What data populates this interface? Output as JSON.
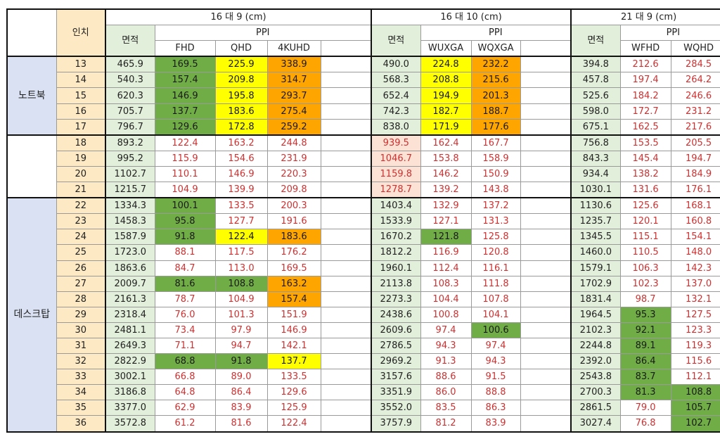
{
  "header": {
    "inch_label": "인치",
    "groups": [
      "16 대 9 (cm)",
      "16 대 10 (cm)",
      "21 대 9 (cm)"
    ],
    "area_label": "면적",
    "ppi_label": "PPI",
    "g1_cols": [
      "FHD",
      "QHD",
      "4KUHD"
    ],
    "g2_cols": [
      "WUXGA",
      "WQXGA"
    ],
    "g3_cols": [
      "WFHD",
      "WQHD"
    ]
  },
  "categories": [
    {
      "label": "노트북",
      "rows": 5
    },
    {
      "label": "",
      "rows": 4
    },
    {
      "label": "데스크탑",
      "rows": 15
    }
  ],
  "colors": {
    "green": "#70ad47",
    "yellow": "#ffff00",
    "orange": "#ffa500",
    "red_text": "#d03030",
    "area_bg": "#e2efda",
    "inch_bg": "#fde9c4",
    "category_bg": "#d9e1f2"
  },
  "rows": [
    {
      "inch": "13",
      "a1": "465.9",
      "fhd": "169.5",
      "qhd": "225.9",
      "uhd": "338.9",
      "a2": "490.0",
      "wuxga": "224.8",
      "wqxga": "232.2",
      "a3": "394.8",
      "wfhd": "212.6",
      "wqhd": "284.5",
      "c": [
        "g",
        "y",
        "o",
        "area",
        "y",
        "o",
        "area",
        "red",
        "red"
      ]
    },
    {
      "inch": "14",
      "a1": "540.3",
      "fhd": "157.4",
      "qhd": "209.8",
      "uhd": "314.7",
      "a2": "568.3",
      "wuxga": "208.8",
      "wqxga": "215.6",
      "a3": "457.8",
      "wfhd": "197.4",
      "wqhd": "264.2",
      "c": [
        "g",
        "y",
        "o",
        "area",
        "y",
        "o",
        "area",
        "red",
        "red"
      ]
    },
    {
      "inch": "15",
      "a1": "620.3",
      "fhd": "146.9",
      "qhd": "195.8",
      "uhd": "293.7",
      "a2": "652.4",
      "wuxga": "194.9",
      "wqxga": "201.3",
      "a3": "525.6",
      "wfhd": "184.2",
      "wqhd": "246.6",
      "c": [
        "g",
        "y",
        "o",
        "area",
        "y",
        "o",
        "area",
        "red",
        "red"
      ]
    },
    {
      "inch": "16",
      "a1": "705.7",
      "fhd": "137.7",
      "qhd": "183.6",
      "uhd": "275.4",
      "a2": "742.3",
      "wuxga": "182.7",
      "wqxga": "188.7",
      "a3": "598.0",
      "wfhd": "172.7",
      "wqhd": "231.2",
      "c": [
        "g",
        "y",
        "o",
        "area",
        "y",
        "o",
        "area",
        "red",
        "red"
      ]
    },
    {
      "inch": "17",
      "a1": "796.7",
      "fhd": "129.6",
      "qhd": "172.8",
      "uhd": "259.2",
      "a2": "838.0",
      "wuxga": "171.9",
      "wqxga": "177.6",
      "a3": "675.1",
      "wfhd": "162.5",
      "wqhd": "217.6",
      "c": [
        "g",
        "y",
        "o",
        "area",
        "y",
        "o",
        "area",
        "red",
        "red"
      ]
    },
    {
      "inch": "18",
      "a1": "893.2",
      "fhd": "122.4",
      "qhd": "163.2",
      "uhd": "244.8",
      "a2": "939.5",
      "wuxga": "162.4",
      "wqxga": "167.7",
      "a3": "756.8",
      "wfhd": "153.5",
      "wqhd": "205.5",
      "c": [
        "red",
        "red",
        "red",
        "area-pink",
        "red",
        "red",
        "area",
        "red",
        "red"
      ]
    },
    {
      "inch": "19",
      "a1": "995.2",
      "fhd": "115.9",
      "qhd": "154.6",
      "uhd": "231.9",
      "a2": "1046.7",
      "wuxga": "153.8",
      "wqxga": "158.9",
      "a3": "843.3",
      "wfhd": "145.4",
      "wqhd": "194.7",
      "c": [
        "red",
        "red",
        "red",
        "area-pink",
        "red",
        "red",
        "area",
        "red",
        "red"
      ]
    },
    {
      "inch": "20",
      "a1": "1102.7",
      "fhd": "110.1",
      "qhd": "146.9",
      "uhd": "220.3",
      "a2": "1159.8",
      "wuxga": "146.2",
      "wqxga": "150.9",
      "a3": "934.4",
      "wfhd": "138.2",
      "wqhd": "184.9",
      "c": [
        "red",
        "red",
        "red",
        "area-pink",
        "red",
        "red",
        "area",
        "red",
        "red"
      ]
    },
    {
      "inch": "21",
      "a1": "1215.7",
      "fhd": "104.9",
      "qhd": "139.9",
      "uhd": "209.8",
      "a2": "1278.7",
      "wuxga": "139.2",
      "wqxga": "143.8",
      "a3": "1030.1",
      "wfhd": "131.6",
      "wqhd": "176.1",
      "c": [
        "red",
        "red",
        "red",
        "area-pink",
        "red",
        "red",
        "area",
        "red",
        "red"
      ]
    },
    {
      "inch": "22",
      "a1": "1334.3",
      "fhd": "100.1",
      "qhd": "133.5",
      "uhd": "200.3",
      "a2": "1403.4",
      "wuxga": "132.9",
      "wqxga": "137.2",
      "a3": "1130.6",
      "wfhd": "125.6",
      "wqhd": "168.1",
      "c": [
        "g",
        "red",
        "red",
        "area",
        "red",
        "red",
        "area",
        "red",
        "red"
      ]
    },
    {
      "inch": "23",
      "a1": "1458.3",
      "fhd": "95.8",
      "qhd": "127.7",
      "uhd": "191.6",
      "a2": "1533.9",
      "wuxga": "127.1",
      "wqxga": "131.3",
      "a3": "1235.7",
      "wfhd": "120.1",
      "wqhd": "160.8",
      "c": [
        "g",
        "red",
        "red",
        "area",
        "red",
        "red",
        "area",
        "red",
        "red"
      ]
    },
    {
      "inch": "24",
      "a1": "1587.9",
      "fhd": "91.8",
      "qhd": "122.4",
      "uhd": "183.6",
      "a2": "1670.2",
      "wuxga": "121.8",
      "wqxga": "125.8",
      "a3": "1345.5",
      "wfhd": "115.1",
      "wqhd": "154.1",
      "c": [
        "g",
        "y",
        "o",
        "area",
        "g",
        "red",
        "area",
        "red",
        "red"
      ]
    },
    {
      "inch": "25",
      "a1": "1723.0",
      "fhd": "88.1",
      "qhd": "117.5",
      "uhd": "176.2",
      "a2": "1812.2",
      "wuxga": "116.9",
      "wqxga": "120.8",
      "a3": "1460.0",
      "wfhd": "110.5",
      "wqhd": "148.0",
      "c": [
        "red",
        "red",
        "red",
        "area",
        "red",
        "red",
        "area",
        "red",
        "red"
      ]
    },
    {
      "inch": "26",
      "a1": "1863.6",
      "fhd": "84.7",
      "qhd": "113.0",
      "uhd": "169.5",
      "a2": "1960.1",
      "wuxga": "112.4",
      "wqxga": "116.1",
      "a3": "1579.1",
      "wfhd": "106.3",
      "wqhd": "142.3",
      "c": [
        "red",
        "red",
        "red",
        "area",
        "red",
        "red",
        "area",
        "red",
        "red"
      ]
    },
    {
      "inch": "27",
      "a1": "2009.7",
      "fhd": "81.6",
      "qhd": "108.8",
      "uhd": "163.2",
      "a2": "2113.8",
      "wuxga": "108.3",
      "wqxga": "111.8",
      "a3": "1702.9",
      "wfhd": "102.3",
      "wqhd": "137.0",
      "c": [
        "g",
        "g",
        "o",
        "area",
        "red",
        "red",
        "area",
        "red",
        "red"
      ]
    },
    {
      "inch": "28",
      "a1": "2161.3",
      "fhd": "78.7",
      "qhd": "104.9",
      "uhd": "157.4",
      "a2": "2273.3",
      "wuxga": "104.4",
      "wqxga": "107.8",
      "a3": "1831.4",
      "wfhd": "98.7",
      "wqhd": "132.1",
      "c": [
        "red",
        "red",
        "o",
        "area",
        "red",
        "red",
        "area",
        "red",
        "red"
      ]
    },
    {
      "inch": "29",
      "a1": "2318.4",
      "fhd": "76.0",
      "qhd": "101.3",
      "uhd": "151.9",
      "a2": "2438.6",
      "wuxga": "100.8",
      "wqxga": "104.1",
      "a3": "1964.5",
      "wfhd": "95.3",
      "wqhd": "127.5",
      "c": [
        "red",
        "red",
        "red",
        "area",
        "red",
        "red",
        "area",
        "g",
        "red"
      ]
    },
    {
      "inch": "30",
      "a1": "2481.1",
      "fhd": "73.4",
      "qhd": "97.9",
      "uhd": "146.9",
      "a2": "2609.6",
      "wuxga": "97.4",
      "wqxga": "100.6",
      "a3": "2102.3",
      "wfhd": "92.1",
      "wqhd": "123.3",
      "c": [
        "red",
        "red",
        "red",
        "area",
        "red",
        "g",
        "area",
        "g",
        "red"
      ]
    },
    {
      "inch": "31",
      "a1": "2649.3",
      "fhd": "71.1",
      "qhd": "94.7",
      "uhd": "142.1",
      "a2": "2786.5",
      "wuxga": "94.3",
      "wqxga": "97.4",
      "a3": "2244.8",
      "wfhd": "89.1",
      "wqhd": "119.3",
      "c": [
        "red",
        "red",
        "red",
        "area",
        "red",
        "red",
        "area",
        "g",
        "red"
      ]
    },
    {
      "inch": "32",
      "a1": "2822.9",
      "fhd": "68.8",
      "qhd": "91.8",
      "uhd": "137.7",
      "a2": "2969.2",
      "wuxga": "91.3",
      "wqxga": "94.3",
      "a3": "2392.0",
      "wfhd": "86.4",
      "wqhd": "115.6",
      "c": [
        "g",
        "g",
        "y",
        "area",
        "red",
        "red",
        "area",
        "g",
        "red"
      ]
    },
    {
      "inch": "33",
      "a1": "3002.1",
      "fhd": "66.8",
      "qhd": "89.0",
      "uhd": "133.5",
      "a2": "3157.6",
      "wuxga": "88.6",
      "wqxga": "91.5",
      "a3": "2543.8",
      "wfhd": "83.7",
      "wqhd": "112.1",
      "c": [
        "red",
        "red",
        "red",
        "area",
        "red",
        "red",
        "area",
        "g",
        "red"
      ]
    },
    {
      "inch": "34",
      "a1": "3186.8",
      "fhd": "64.8",
      "qhd": "86.4",
      "uhd": "129.6",
      "a2": "3351.9",
      "wuxga": "86.0",
      "wqxga": "88.8",
      "a3": "2700.3",
      "wfhd": "81.3",
      "wqhd": "108.8",
      "c": [
        "red",
        "red",
        "red",
        "area",
        "red",
        "red",
        "area",
        "g",
        "g"
      ]
    },
    {
      "inch": "35",
      "a1": "3377.0",
      "fhd": "62.9",
      "qhd": "83.9",
      "uhd": "125.9",
      "a2": "3552.0",
      "wuxga": "83.5",
      "wqxga": "86.3",
      "a3": "2861.5",
      "wfhd": "79.0",
      "wqhd": "105.7",
      "c": [
        "red",
        "red",
        "red",
        "area",
        "red",
        "red",
        "area",
        "red",
        "g"
      ]
    },
    {
      "inch": "36",
      "a1": "3572.8",
      "fhd": "61.2",
      "qhd": "81.6",
      "uhd": "122.4",
      "a2": "3757.9",
      "wuxga": "81.2",
      "wqxga": "83.9",
      "a3": "3027.4",
      "wfhd": "76.8",
      "wqhd": "102.7",
      "c": [
        "red",
        "red",
        "red",
        "area",
        "red",
        "red",
        "area",
        "red",
        "g"
      ]
    }
  ]
}
